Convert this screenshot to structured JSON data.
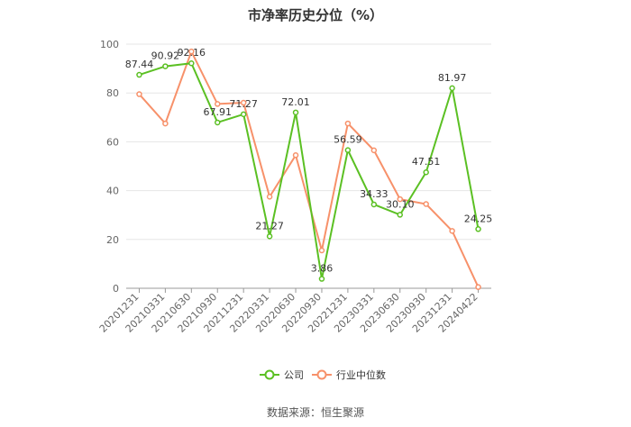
{
  "chart_data": {
    "type": "line",
    "title": "市净率历史分位（%）",
    "xlabel": "",
    "ylabel": "",
    "ylim": [
      0,
      100
    ],
    "yticks": [
      0,
      20,
      40,
      60,
      80,
      100
    ],
    "grid": true,
    "legend_position": "bottom",
    "categories": [
      "20201231",
      "20210331",
      "20210630",
      "20210930",
      "20211231",
      "20220331",
      "20220630",
      "20220930",
      "20221231",
      "20230331",
      "20230630",
      "20230930",
      "20231231",
      "20240422"
    ],
    "series": [
      {
        "name": "公司",
        "color": "#5bc023",
        "values": [
          87.44,
          90.92,
          92.16,
          67.91,
          71.27,
          21.27,
          72.01,
          3.86,
          56.59,
          34.33,
          30.1,
          47.51,
          81.97,
          24.25
        ],
        "labels": [
          "87.44",
          "90.92",
          "92.16",
          "67.91",
          "71.27",
          "21.27",
          "72.01",
          "3.86",
          "56.59",
          "34.33",
          "30.10",
          "47.51",
          "81.97",
          "24.25"
        ]
      },
      {
        "name": "行业中位数",
        "color": "#f7916a",
        "values": [
          79.5,
          67.5,
          97.0,
          75.5,
          76.0,
          37.5,
          54.5,
          15.5,
          67.5,
          56.5,
          36.5,
          34.5,
          23.5,
          0.5
        ]
      }
    ],
    "source": "数据来源：恒生聚源"
  }
}
